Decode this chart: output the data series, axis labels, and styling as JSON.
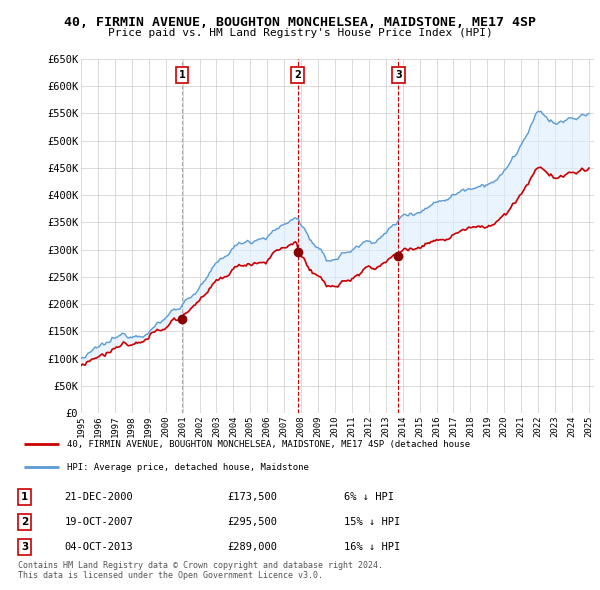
{
  "title": "40, FIRMIN AVENUE, BOUGHTON MONCHELSEA, MAIDSTONE, ME17 4SP",
  "subtitle": "Price paid vs. HM Land Registry's House Price Index (HPI)",
  "ylim": [
    0,
    650000
  ],
  "yticks": [
    0,
    50000,
    100000,
    150000,
    200000,
    250000,
    300000,
    350000,
    400000,
    450000,
    500000,
    550000,
    600000,
    650000
  ],
  "ytick_labels": [
    "£0",
    "£50K",
    "£100K",
    "£150K",
    "£200K",
    "£250K",
    "£300K",
    "£350K",
    "£400K",
    "£450K",
    "£500K",
    "£550K",
    "£600K",
    "£650K"
  ],
  "sale_year_floats": [
    2000.96,
    2007.79,
    2013.75
  ],
  "sale_prices": [
    173500,
    295500,
    289000
  ],
  "sale_labels": [
    "1",
    "2",
    "3"
  ],
  "line_color_price": "#cc0000",
  "line_color_hpi": "#5b9bd5",
  "fill_color_hpi": "#ddeeff",
  "grid_color": "#cccccc",
  "background_color": "#ffffff",
  "legend_entries": [
    "40, FIRMIN AVENUE, BOUGHTON MONCHELSEA, MAIDSTONE, ME17 4SP (detached house",
    "HPI: Average price, detached house, Maidstone"
  ],
  "table_entries": [
    {
      "label": "1",
      "date": "21-DEC-2000",
      "price": "£173,500",
      "pct": "6% ↓ HPI"
    },
    {
      "label": "2",
      "date": "19-OCT-2007",
      "price": "£295,500",
      "pct": "15% ↓ HPI"
    },
    {
      "label": "3",
      "date": "04-OCT-2013",
      "price": "£289,000",
      "pct": "16% ↓ HPI"
    }
  ],
  "footer": "Contains HM Land Registry data © Crown copyright and database right 2024.\nThis data is licensed under the Open Government Licence v3.0.",
  "xstart_year": 1995,
  "xend_year": 2025
}
